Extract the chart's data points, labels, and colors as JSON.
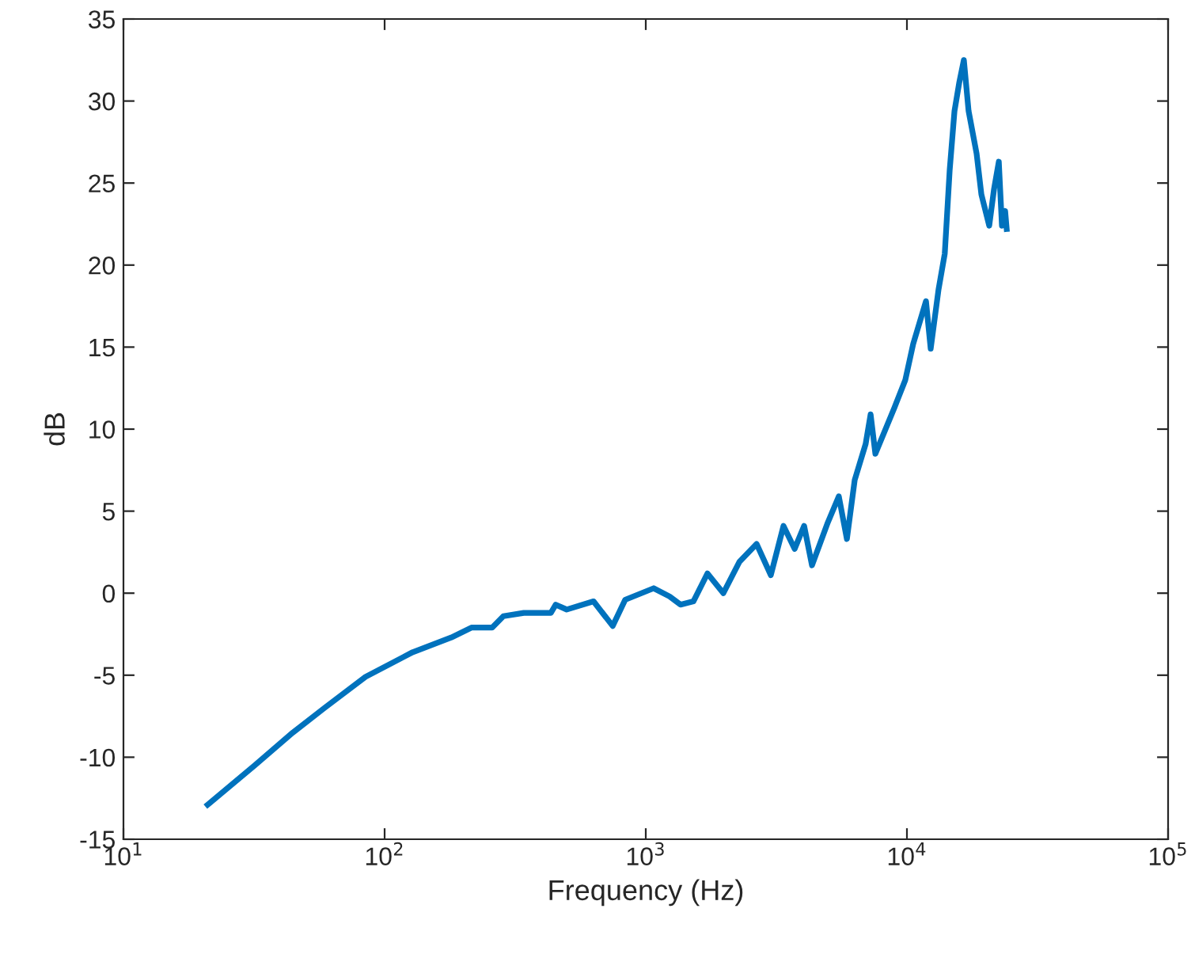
{
  "chart_data": {
    "type": "line",
    "xlabel": "Frequency (Hz)",
    "ylabel": "dB",
    "log": "x",
    "xlim": [
      10,
      100000
    ],
    "xticks": [
      {
        "value": 10,
        "label": "10$^{1}$"
      },
      {
        "value": 100,
        "label": "10$^{2}$"
      },
      {
        "value": 1000,
        "label": "10$^{3}$"
      },
      {
        "value": 10000,
        "label": "10$^{4}$"
      },
      {
        "value": 100000,
        "label": "10$^{5}$"
      }
    ],
    "ylim": [
      -15,
      35
    ],
    "yticks": [
      -15,
      -10,
      -5,
      0,
      5,
      10,
      15,
      20,
      25,
      30,
      35
    ],
    "grid": false,
    "legend": false,
    "marker": "none",
    "line_style": "solid",
    "series": [
      {
        "color": "#0072bd",
        "x": [
          21,
          31.8,
          44.5,
          58.8,
          84.5,
          128,
          180,
          215,
          258,
          285,
          341,
          433,
          452,
          498,
          631,
          747,
          834,
          1072,
          1234,
          1358,
          1522,
          1722,
          1982,
          2281,
          2657,
          3012,
          3368,
          3715,
          4040,
          4330,
          4976,
          5485,
          5890,
          6310,
          6950,
          7260,
          7570,
          8950,
          9860,
          10570,
          11830,
          12330,
          13210,
          13960,
          14580,
          15210,
          15850,
          16520,
          17220,
          18480,
          19280,
          20660,
          21540,
          22480,
          23110,
          23770,
          24100
        ],
        "values": [
          -12.9,
          -10.5,
          -8.5,
          -7.0,
          -5.1,
          -3.6,
          -2.7,
          -2.1,
          -2.1,
          -1.4,
          -1.2,
          -1.2,
          -0.7,
          -1.0,
          -0.5,
          -2.0,
          -0.4,
          0.3,
          -0.2,
          -0.7,
          -0.5,
          1.2,
          0.0,
          1.9,
          3.0,
          1.1,
          4.1,
          2.7,
          4.1,
          1.7,
          4.3,
          5.9,
          3.3,
          6.9,
          9.1,
          10.9,
          8.5,
          11.3,
          13.0,
          15.2,
          17.8,
          14.9,
          18.5,
          20.7,
          25.8,
          29.4,
          31.1,
          32.5,
          29.4,
          26.8,
          24.3,
          22.4,
          24.6,
          26.3,
          22.4,
          23.3,
          22.2
        ]
      }
    ]
  }
}
